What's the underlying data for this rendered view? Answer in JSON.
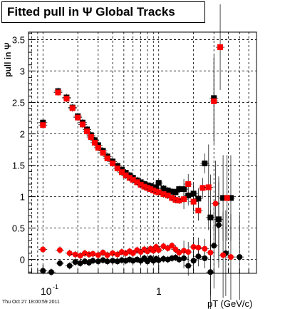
{
  "title": "Fitted pull in  Ψ   Global Tracks",
  "footer": "Thu Oct 27 18:00:59 2011",
  "colors": {
    "black_series": "#000000",
    "red_series": "#ff0000",
    "grid": "#000000"
  },
  "chart_data": {
    "type": "scatter",
    "title": "Fitted pull in  Ψ   Global Tracks",
    "xlabel": "pT (GeV/c)",
    "ylabel": "pull in Ψ",
    "xscale": "log",
    "xlim": [
      0.075,
      7.0
    ],
    "ylim": [
      -0.22,
      3.62
    ],
    "grid": true,
    "x_tick_labels": [
      "10⁻¹",
      "1"
    ],
    "y_ticks": [
      0,
      0.5,
      1,
      1.5,
      2,
      2.5,
      3,
      3.5
    ],
    "series": [
      {
        "color": "black",
        "marker": "square",
        "x": [
          0.1,
          0.135,
          0.16,
          0.18,
          0.2,
          0.22,
          0.24,
          0.26,
          0.28,
          0.3,
          0.33,
          0.36,
          0.4,
          0.44,
          0.48,
          0.52,
          0.56,
          0.6,
          0.65,
          0.7,
          0.75,
          0.8,
          0.85,
          0.9,
          0.95,
          1.0,
          1.1,
          1.2,
          1.3,
          1.4,
          1.5,
          1.65,
          1.8,
          2.0,
          2.2,
          2.5,
          2.8,
          3.0,
          3.3,
          3.6,
          4.2
        ],
        "y": [
          2.18,
          2.68,
          2.58,
          2.42,
          2.28,
          2.18,
          2.07,
          1.98,
          1.9,
          1.82,
          1.73,
          1.64,
          1.56,
          1.49,
          1.43,
          1.38,
          1.34,
          1.3,
          1.26,
          1.23,
          1.2,
          1.18,
          1.17,
          1.15,
          1.14,
          1.22,
          1.13,
          1.1,
          1.08,
          1.07,
          1.12,
          1.12,
          1.02,
          1.05,
          0.97,
          1.53,
          0.67,
          2.57,
          0.64,
          0.98,
          0.98
        ]
      },
      {
        "color": "red",
        "marker": "square",
        "x": [
          0.1,
          0.135,
          0.16,
          0.18,
          0.2,
          0.22,
          0.24,
          0.26,
          0.28,
          0.3,
          0.33,
          0.36,
          0.4,
          0.44,
          0.48,
          0.52,
          0.56,
          0.6,
          0.65,
          0.7,
          0.75,
          0.8,
          0.85,
          0.9,
          0.95,
          1.0,
          1.1,
          1.2,
          1.3,
          1.4,
          1.5,
          1.65,
          1.8,
          2.0,
          2.2,
          2.4,
          2.7,
          3.0,
          3.4,
          3.9
        ],
        "y": [
          2.14,
          2.66,
          2.56,
          2.41,
          2.26,
          2.15,
          2.04,
          1.95,
          1.86,
          1.78,
          1.7,
          1.61,
          1.53,
          1.45,
          1.39,
          1.34,
          1.3,
          1.27,
          1.23,
          1.19,
          1.16,
          1.14,
          1.12,
          1.1,
          1.08,
          1.07,
          1.04,
          1.02,
          0.98,
          0.95,
          0.94,
          0.96,
          1.2,
          0.92,
          0.78,
          1.14,
          1.15,
          2.52,
          3.38,
          0.98
        ]
      },
      {
        "color": "black",
        "marker": "circle",
        "x": [
          0.1,
          0.118,
          0.14,
          0.17,
          0.19,
          0.21,
          0.23,
          0.25,
          0.27,
          0.3,
          0.33,
          0.36,
          0.4,
          0.44,
          0.48,
          0.52,
          0.56,
          0.6,
          0.65,
          0.7,
          0.75,
          0.8,
          0.85,
          0.9,
          0.95,
          1.0,
          1.1,
          1.2,
          1.3,
          1.4,
          1.5,
          1.65,
          1.8,
          2.0,
          2.2,
          2.5,
          2.8,
          3.0,
          3.3,
          3.8,
          5.0
        ],
        "y": [
          -0.18,
          -0.2,
          -0.06,
          -0.1,
          -0.04,
          -0.06,
          -0.03,
          -0.05,
          -0.02,
          -0.03,
          -0.01,
          -0.03,
          -0.02,
          -0.03,
          -0.01,
          -0.02,
          0.0,
          -0.02,
          0.0,
          -0.02,
          0.02,
          -0.03,
          0.02,
          -0.02,
          0.01,
          -0.01,
          0.01,
          0.0,
          0.02,
          0.03,
          0.0,
          0.02,
          -0.1,
          -0.02,
          0.05,
          0.02,
          -0.2,
          0.22,
          0.55,
          0.1,
          0.04
        ]
      },
      {
        "color": "red",
        "marker": "circle",
        "x": [
          0.1,
          0.14,
          0.17,
          0.19,
          0.21,
          0.23,
          0.25,
          0.27,
          0.3,
          0.33,
          0.36,
          0.4,
          0.44,
          0.48,
          0.52,
          0.56,
          0.6,
          0.65,
          0.7,
          0.75,
          0.8,
          0.85,
          0.9,
          0.95,
          1.0,
          1.1,
          1.2,
          1.3,
          1.4,
          1.5,
          1.65,
          1.8,
          2.0,
          2.2,
          2.5,
          2.8,
          3.1,
          3.6,
          4.2
        ],
        "y": [
          0.16,
          0.15,
          0.1,
          0.08,
          0.06,
          0.1,
          0.08,
          0.09,
          0.07,
          0.11,
          0.07,
          0.1,
          0.08,
          0.12,
          0.1,
          0.13,
          0.1,
          0.15,
          0.12,
          0.16,
          0.13,
          0.17,
          0.14,
          0.2,
          0.15,
          0.21,
          0.18,
          0.22,
          0.16,
          0.11,
          0.14,
          0.12,
          0.2,
          0.19,
          0.17,
          0.11,
          0.89,
          0.07,
          0.04
        ]
      }
    ]
  }
}
